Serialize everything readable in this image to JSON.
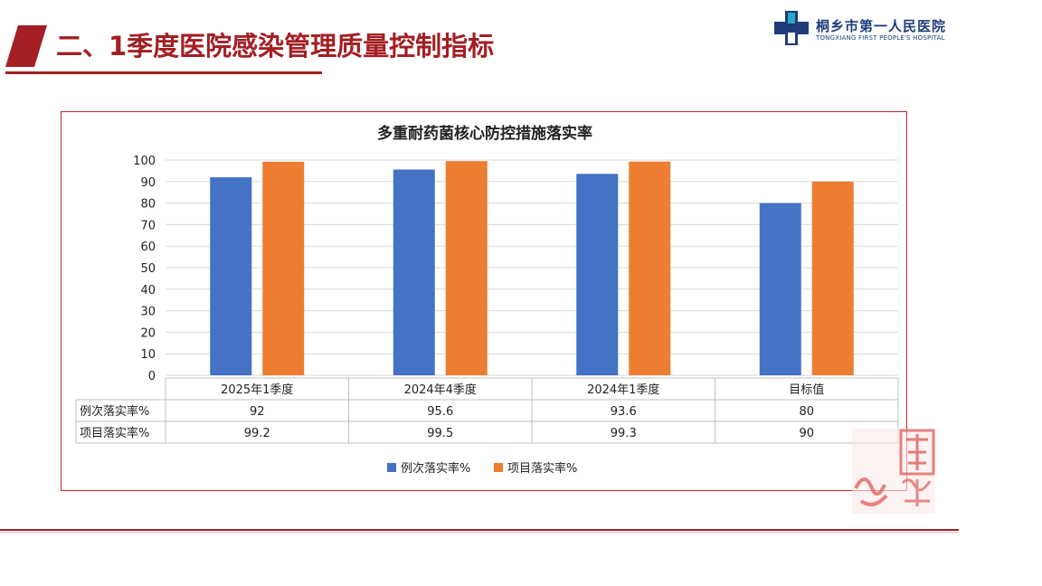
{
  "slide": {
    "title": "二、1季度医院感染管理质量控制指标"
  },
  "logo": {
    "name_cn": "桐乡市第一人民医院",
    "name_en": "TONGXIANG FIRST PEOPLE'S HOSPITAL",
    "icon": "hospital-cross-icon"
  },
  "seal": {
    "icon": "red-seal-stamp-icon",
    "color": "#d9534f"
  },
  "colors": {
    "accent": "#a31f24",
    "series1": "#4472c4",
    "series2": "#ed7d31"
  },
  "chart_data": {
    "type": "bar",
    "title": "多重耐药菌核心防控措施落实率",
    "categories": [
      "2025年1季度",
      "2024年4季度",
      "2024年1季度",
      "目标值"
    ],
    "series": [
      {
        "name": "例次落实率%",
        "values": [
          92,
          95.6,
          93.6,
          80
        ],
        "labels": [
          "92",
          "95.6",
          "93.6",
          "80"
        ],
        "color": "#4472c4"
      },
      {
        "name": "项目落实率%",
        "values": [
          99.2,
          99.5,
          99.3,
          90
        ],
        "labels": [
          "99.2",
          "99.5",
          "99.3",
          "90"
        ],
        "color": "#ed7d31"
      }
    ],
    "ylim": [
      0,
      100
    ],
    "yticks": [
      "0",
      "10",
      "20",
      "30",
      "40",
      "50",
      "60",
      "70",
      "80",
      "90",
      "100"
    ],
    "grid": true,
    "legend": "bottom",
    "data_table": true
  }
}
